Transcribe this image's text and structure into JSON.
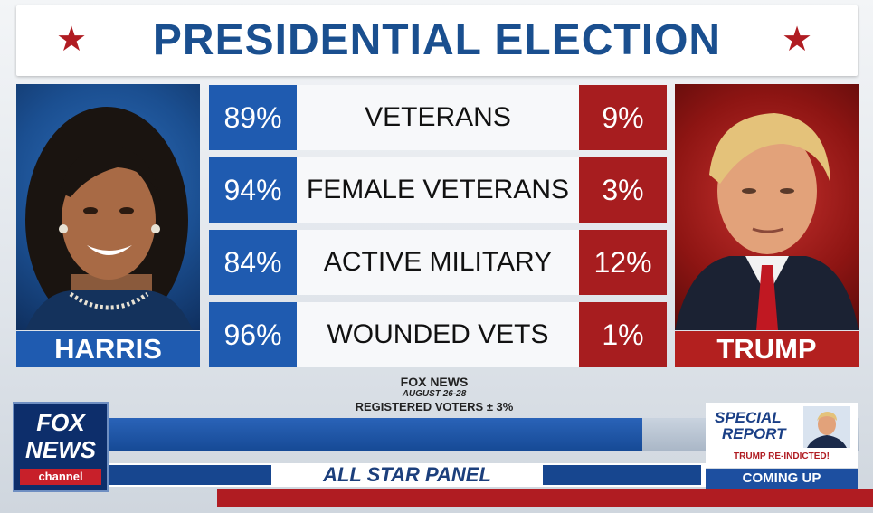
{
  "header": {
    "title": "PRESIDENTIAL ELECTION",
    "star_color": "#b01c22",
    "title_color": "#1a4f8f"
  },
  "candidates": {
    "left": {
      "name": "HARRIS",
      "color": "#1f5bb0"
    },
    "right": {
      "name": "TRUMP",
      "color": "#b3201f"
    }
  },
  "rows": [
    {
      "left": "89%",
      "category": "VETERANS",
      "right": "9%"
    },
    {
      "left": "94%",
      "category": "FEMALE VETERANS",
      "right": "3%"
    },
    {
      "left": "84%",
      "category": "ACTIVE MILITARY",
      "right": "12%"
    },
    {
      "left": "96%",
      "category": "WOUNDED VETS",
      "right": "1%"
    }
  ],
  "source": {
    "line1": "FOX NEWS",
    "line2": "AUGUST 26-28",
    "line3": "REGISTERED VOTERS ± 3%"
  },
  "lower_third": {
    "panel": "ALL STAR PANEL"
  },
  "logo": {
    "line1": "FOX",
    "line2": "NEWS",
    "line3": "channel"
  },
  "promo": {
    "line1": "SPECIAL",
    "line2": "REPORT",
    "headline": "TRUMP RE-INDICTED!",
    "cta": "COMING UP"
  }
}
